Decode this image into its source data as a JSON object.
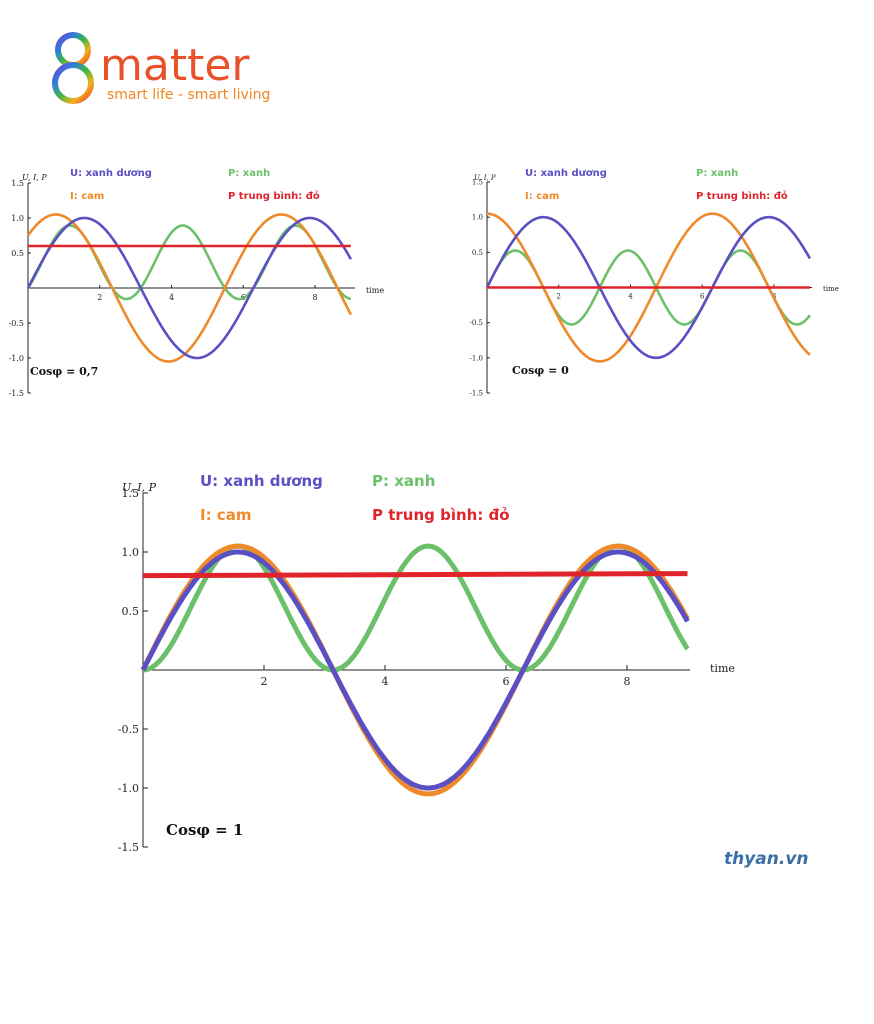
{
  "logo": {
    "brand_text": "matter",
    "tagline": "smart life - smart living"
  },
  "watermark": "thyan.vn",
  "colors": {
    "u": "#5b4fc4",
    "i": "#ef8a2a",
    "p": "#6cc06a",
    "p_avg": "#e0242a",
    "axis": "#222222"
  },
  "chart_data": [
    {
      "type": "line",
      "title": "",
      "ylabel": "U, I, P",
      "xlabel": "time",
      "xlim": [
        0,
        9
      ],
      "ylim": [
        -1.5,
        1.5
      ],
      "x_ticks": [
        2,
        4,
        6,
        8
      ],
      "y_ticks": [
        "1.5",
        "1.0",
        "0.5",
        "-0.5",
        "-1.0",
        "-1.5"
      ],
      "y_tick_values": [
        1.5,
        1.0,
        0.5,
        -0.5,
        -1.0,
        -1.5
      ],
      "legend": [
        "U: xanh dương",
        "I: cam",
        "P: xanh",
        "P trung bình: đỏ"
      ],
      "annotation": "Cosφ = 0,7",
      "series": [
        {
          "name": "U: xanh dương",
          "amplitude": 1.0,
          "phase": 0.0,
          "kind": "sin"
        },
        {
          "name": "I: cam",
          "amplitude": 1.05,
          "phase": 0.7954,
          "kind": "sin"
        },
        {
          "name": "P: xanh",
          "kind": "product"
        },
        {
          "name": "P trung bình: đỏ",
          "kind": "average",
          "value": 0.6
        }
      ]
    },
    {
      "type": "line",
      "title": "",
      "ylabel": "U, I, P",
      "xlabel": "time",
      "xlim": [
        0,
        9
      ],
      "ylim": [
        -1.5,
        1.5
      ],
      "x_ticks": [
        2,
        4,
        6,
        8
      ],
      "y_ticks": [
        "1.5",
        "1.0",
        "0.5",
        "-0.5",
        "-1.0",
        "-1.5"
      ],
      "y_tick_values": [
        1.5,
        1.0,
        0.5,
        -0.5,
        -1.0,
        -1.5
      ],
      "legend": [
        "U: xanh dương",
        "I: cam",
        "P: xanh",
        "P trung bình: đỏ"
      ],
      "annotation": "Cosφ = 0",
      "series": [
        {
          "name": "U: xanh dương",
          "amplitude": 1.0,
          "phase": 0.0,
          "kind": "sin"
        },
        {
          "name": "I: cam",
          "amplitude": 1.05,
          "phase": 1.5708,
          "kind": "sin"
        },
        {
          "name": "P: xanh",
          "kind": "product"
        },
        {
          "name": "P trung bình: đỏ",
          "kind": "average",
          "value": 0.0
        }
      ]
    },
    {
      "type": "line",
      "title": "",
      "ylabel": "U, I, P",
      "xlabel": "time",
      "xlim": [
        0,
        9
      ],
      "ylim": [
        -1.5,
        1.5
      ],
      "x_ticks": [
        2,
        4,
        6,
        8
      ],
      "y_ticks": [
        "1.5",
        "1.0",
        "0.5",
        "-0.5",
        "-1.0",
        "-1.5"
      ],
      "y_tick_values": [
        1.5,
        1.0,
        0.5,
        -0.5,
        -1.0,
        -1.5
      ],
      "legend": [
        "U: xanh dương",
        "I: cam",
        "P: xanh",
        "P trung bình: đỏ"
      ],
      "annotation": "Cosφ = 1",
      "series": [
        {
          "name": "U: xanh dương",
          "amplitude": 1.0,
          "phase": 0.0,
          "kind": "sin"
        },
        {
          "name": "I: cam",
          "amplitude": 1.05,
          "phase": 0.0,
          "kind": "sin"
        },
        {
          "name": "P: xanh",
          "kind": "product"
        },
        {
          "name": "P trung bình: đỏ",
          "kind": "average",
          "value": 0.8
        }
      ]
    }
  ]
}
